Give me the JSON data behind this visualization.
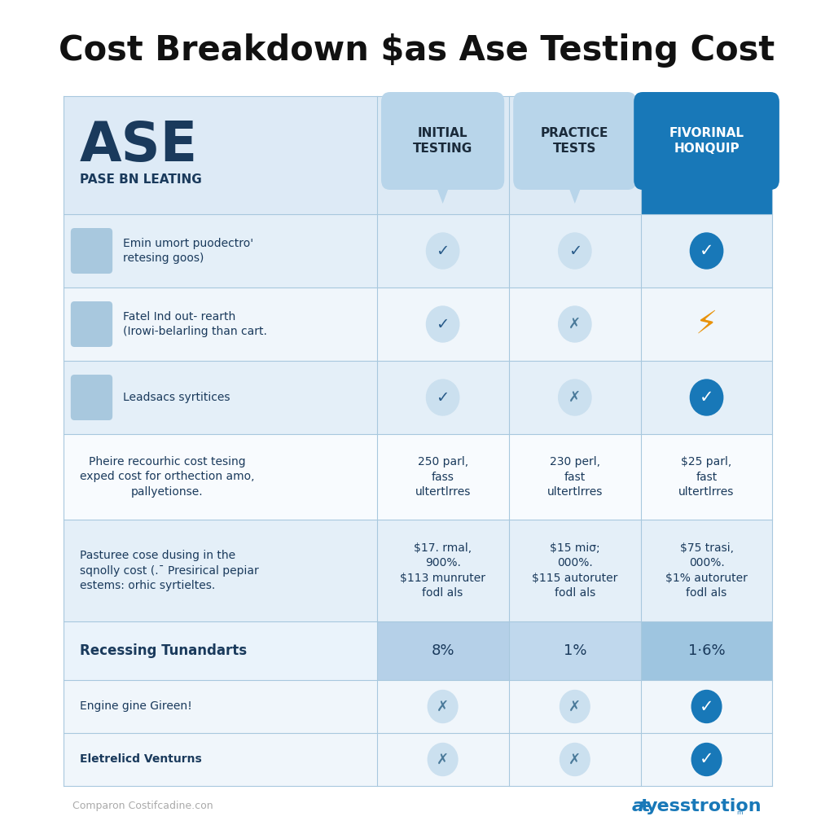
{
  "title": "Cost Breakdown $as Ase Testing Cost",
  "bg_color": "#ffffff",
  "col1_header": "INITIAL\nTESTING",
  "col2_header": "PRACTICE\nTESTS",
  "col3_header": "FIVORINAL\nHONQUIP",
  "ase_label": "ASE",
  "ase_sublabel": "PASE BN LEATING",
  "feature_rows": [
    {
      "label": "Emin umort puodectro'\nretesing goos)",
      "col1": "check_light",
      "col2": "check_light",
      "col3": "check_blue"
    },
    {
      "label": "Fatel Ind out- rearth\n(Irowi-belarling than cart.",
      "col1": "check_light",
      "col2": "x_light",
      "col3": "lightning_orange"
    },
    {
      "label": "Leadsacs syrtitices",
      "col1": "check_light",
      "col2": "x_light",
      "col3": "check_blue"
    }
  ],
  "price_label": "Pheire recourhic cost tesing\nexped cost for orthection amo,\npallyetionse.",
  "price_col1": "250 parl,\nfass\nultertlrres",
  "price_col2": "230 perl,\nfast\nultertlrres",
  "price_col3": "$25 parl,\nfast\nultertlrres",
  "cost_label": "Pasturee cose dusing in the\nsqnolly cost (.¯ Presirical pepiar\nestems: orhic syrtieltes.",
  "cost_col1": "$17. rmal,\n900%.\n$113 munruter\nfodl als",
  "cost_col2": "$15 miσ;\n000%.\n$115 autoruter\nfodl als",
  "cost_col3": "$75 trasi,\n000%.\n$1% autoruter\nfodl als",
  "standard_label": "Recessing Tunandarts",
  "standard_col1": "8%",
  "standard_col2": "1%",
  "standard_col3": "1·6%",
  "extra_rows": [
    {
      "label": "Engine gine Gireen!",
      "label_bold": false,
      "col1": "x_light",
      "col2": "x_light",
      "col3": "check_blue"
    },
    {
      "label": "Eletrelicd Venturns",
      "label_bold": true,
      "col1": "x_light",
      "col2": "x_light",
      "col3": "check_blue"
    }
  ],
  "footer_left": "Comparon Costifcadine.con",
  "bubble_light_color": "#b8d5ea",
  "bubble_blue_color": "#1878b8",
  "header_ase_bg": "#ddeaf6",
  "row1_bg": "#e4eff8",
  "row2_bg": "#f0f6fb",
  "row3_bg": "#e4eff8",
  "price_row_bg": "#f8fbfe",
  "cost_row_bg": "#e4eff8",
  "std_left_bg": "#eaf3fb",
  "std_mid1_bg": "#b5d0e8",
  "std_mid2_bg": "#c0d8ed",
  "std_right_bg": "#9ec5e0",
  "extra_row_bg": "#f0f6fb",
  "table_outer_bg": "#e8f3fa"
}
